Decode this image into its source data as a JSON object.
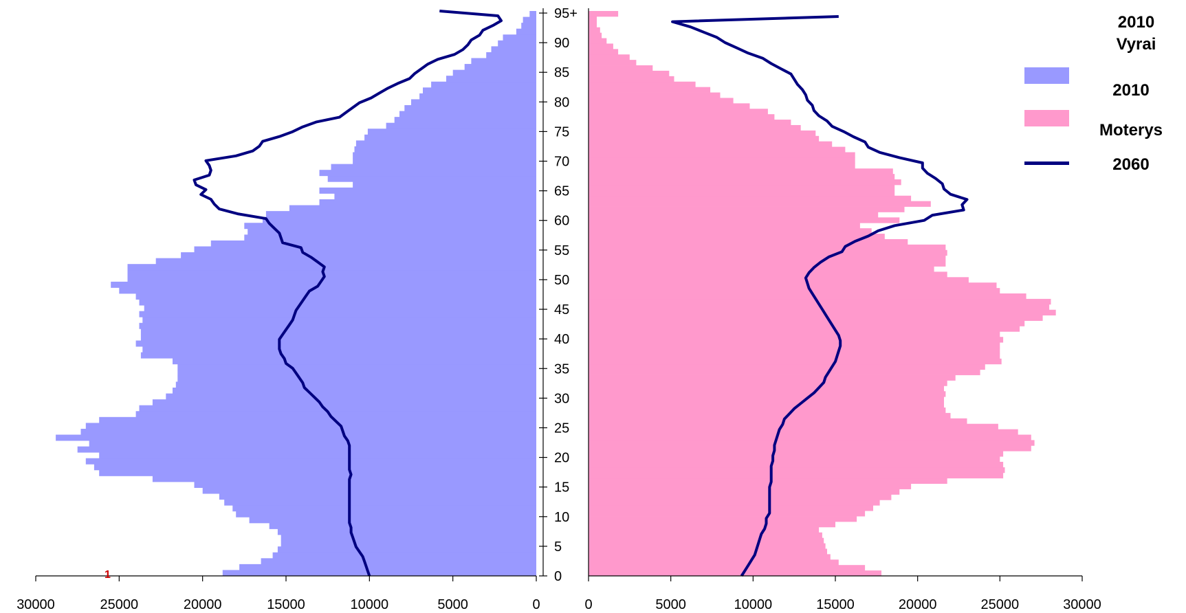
{
  "chart_data": {
    "type": "bar",
    "subtype": "population-pyramid",
    "orientation": "horizontal",
    "age_labels": [
      "0",
      "5",
      "10",
      "15",
      "20",
      "25",
      "30",
      "35",
      "40",
      "45",
      "50",
      "55",
      "60",
      "65",
      "70",
      "75",
      "80",
      "85",
      "90",
      "95+"
    ],
    "x_ticks_left": [
      "30000",
      "25000",
      "20000",
      "15000",
      "10000",
      "5000",
      "0"
    ],
    "x_ticks_right": [
      "0",
      "5000",
      "10000",
      "15000",
      "20000",
      "25000",
      "30000"
    ],
    "xlim": [
      0,
      30000
    ],
    "ylim": [
      0,
      95
    ],
    "legend_position": "right",
    "legend": {
      "title_line1": "2010",
      "title_line2": "Vyrai",
      "items": [
        {
          "label": "2010",
          "kind": "bar",
          "color": "#9999ff"
        },
        {
          "label": "Moterys",
          "kind": "bar",
          "color": "#ff99cc"
        },
        {
          "label": "2060",
          "kind": "line",
          "color": "#000080"
        }
      ]
    },
    "stray_label": "1",
    "series": [
      {
        "side": "left",
        "kind": "bar",
        "color": "#9999ff",
        "values": [
          18800,
          17800,
          16500,
          15800,
          15500,
          15300,
          15300,
          15500,
          16000,
          17200,
          18000,
          18200,
          18700,
          19000,
          20000,
          20500,
          23000,
          26200,
          26500,
          27000,
          26200,
          27500,
          26800,
          28800,
          27300,
          27000,
          26200,
          24000,
          23800,
          23000,
          22200,
          21800,
          21600,
          21500,
          21500,
          21500,
          21800,
          23700,
          23600,
          24000,
          23700,
          23700,
          23800,
          23600,
          23800,
          23500,
          23800,
          24000,
          25000,
          25500,
          24500,
          24500,
          24500,
          22800,
          21300,
          20500,
          19500,
          17500,
          17300,
          17500,
          16400,
          16200,
          14800,
          13000,
          12100,
          13000,
          11000,
          12500,
          13000,
          12300,
          11000,
          11000,
          10900,
          10800,
          10300,
          10100,
          9000,
          8500,
          8200,
          7900,
          7500,
          7000,
          6800,
          6300,
          5400,
          5000,
          4300,
          3900,
          3000,
          2700,
          2300,
          2000,
          1200,
          900,
          800,
          400
        ]
      },
      {
        "side": "right",
        "kind": "bar",
        "color": "#ff99cc",
        "values": [
          17800,
          16800,
          15200,
          14700,
          14500,
          14400,
          14300,
          14200,
          14000,
          15000,
          16300,
          16800,
          17300,
          17700,
          18400,
          18900,
          19600,
          21800,
          25200,
          25300,
          25200,
          25000,
          25200,
          26900,
          27100,
          26900,
          26100,
          24900,
          23000,
          22000,
          21700,
          21600,
          21600,
          21700,
          21600,
          21800,
          22300,
          23800,
          24100,
          25100,
          25000,
          25000,
          25000,
          25200,
          25000,
          26200,
          26500,
          27600,
          28400,
          28000,
          28100,
          26600,
          25000,
          24800,
          23100,
          21800,
          21000,
          21700,
          21700,
          21800,
          21700,
          19400,
          18000,
          17200,
          16500,
          18900,
          17600,
          19200,
          20800,
          19600,
          18600,
          18600,
          19000,
          18600,
          18500,
          16200,
          16200,
          16200,
          15600,
          14800,
          14000,
          13800,
          12900,
          12300,
          11300,
          10900,
          9800,
          8800,
          8000,
          7400,
          6500,
          5200,
          4900,
          3900,
          2900,
          2500,
          1800,
          1500,
          1100,
          800,
          700,
          500,
          500,
          1800
        ]
      },
      {
        "name": "2060",
        "side": "left",
        "kind": "line",
        "color": "#000080",
        "values": [
          10000,
          10100,
          10200,
          10300,
          10400,
          10600,
          10800,
          10900,
          11000,
          11100,
          11100,
          11200,
          11200,
          11200,
          11200,
          11200,
          11200,
          11200,
          11200,
          11200,
          11200,
          11100,
          11200,
          11200,
          11200,
          11200,
          11200,
          11200,
          11300,
          11500,
          11600,
          11700,
          12000,
          12300,
          12500,
          12800,
          13000,
          13300,
          13600,
          13900,
          14000,
          14200,
          14400,
          14600,
          15000,
          15100,
          15300,
          15400,
          15400,
          15400,
          15200,
          15000,
          14800,
          14600,
          14500,
          14400,
          14200,
          14000,
          13800,
          13600,
          13100,
          12900,
          12700,
          12800,
          12700,
          13100,
          13500,
          14000,
          14100,
          15200,
          15300,
          15400,
          15700,
          16000,
          16200,
          17900,
          19000,
          19300,
          19500,
          20100,
          19800,
          20400,
          20500,
          19600,
          19500,
          19600,
          19800,
          18000,
          17000,
          16600,
          16400,
          15400,
          14600,
          14000,
          13200,
          11800,
          11400,
          11000,
          10600,
          9900,
          9400,
          8900,
          8300,
          7600,
          7300,
          6900,
          6500,
          5900,
          4900,
          4400,
          4100,
          3900,
          3400,
          3200,
          2600,
          2100,
          2300,
          5800
        ]
      },
      {
        "name": "2060",
        "side": "right",
        "kind": "line",
        "color": "#000080",
        "values": [
          9300,
          9500,
          9700,
          9900,
          10100,
          10200,
          10300,
          10400,
          10500,
          10700,
          10800,
          10800,
          11000,
          11000,
          11000,
          11000,
          11000,
          11000,
          11100,
          11100,
          11100,
          11100,
          11200,
          11200,
          11300,
          11300,
          11400,
          11500,
          11600,
          11800,
          11900,
          12200,
          12500,
          12900,
          13300,
          13700,
          14000,
          14300,
          14400,
          14600,
          14800,
          15000,
          15100,
          15200,
          15300,
          15300,
          15200,
          15000,
          14800,
          14600,
          14400,
          14200,
          14000,
          13800,
          13600,
          13400,
          13300,
          13200,
          13400,
          13700,
          14100,
          14600,
          15400,
          15600,
          16200,
          17000,
          17600,
          18600,
          20400,
          20900,
          22800,
          22700,
          23000,
          22000,
          21600,
          21500,
          21100,
          20600,
          20300,
          20300,
          18900,
          17700,
          17000,
          16800,
          16100,
          15500,
          14800,
          14500,
          14000,
          13700,
          13600,
          13300,
          13200,
          13000,
          12700,
          12500,
          12300,
          11700,
          11100,
          10600,
          9700,
          9000,
          8300,
          7800,
          7000,
          6200,
          5100,
          15200
        ]
      }
    ]
  }
}
